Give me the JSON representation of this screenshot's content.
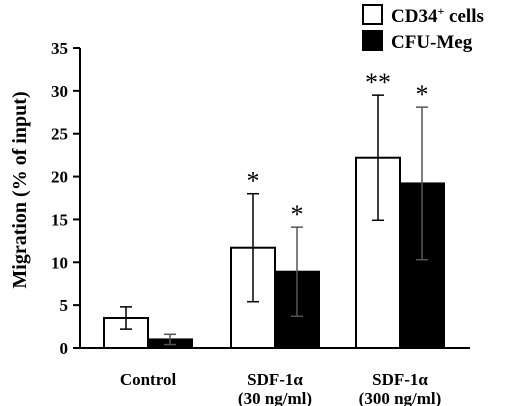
{
  "chart_data": {
    "type": "bar",
    "ylabel": "Migration (% of input)",
    "ylim": [
      0,
      35
    ],
    "yticks": [
      0,
      5,
      10,
      15,
      20,
      25,
      30,
      35
    ],
    "categories": [
      {
        "line1": "Control",
        "line2": ""
      },
      {
        "line1": "SDF-1α",
        "line2": "(30 ng/ml)"
      },
      {
        "line1": "SDF-1α",
        "line2": "(300 ng/ml)"
      }
    ],
    "series": [
      {
        "name_main": "CD34",
        "name_sup": "+",
        "name_rest": " cells",
        "fill": "#ffffff",
        "values": [
          3.5,
          11.7,
          22.2
        ],
        "errors": [
          1.3,
          6.3,
          7.3
        ],
        "annotations": [
          "",
          "*",
          "**"
        ]
      },
      {
        "name_main": "CFU-Meg",
        "name_sup": "",
        "name_rest": "",
        "fill": "#000000",
        "values": [
          1.0,
          8.9,
          19.2
        ],
        "errors": [
          0.6,
          5.2,
          8.9
        ],
        "annotations": [
          "",
          "*",
          "*"
        ]
      }
    ],
    "grid": false,
    "legend": "top-right"
  }
}
